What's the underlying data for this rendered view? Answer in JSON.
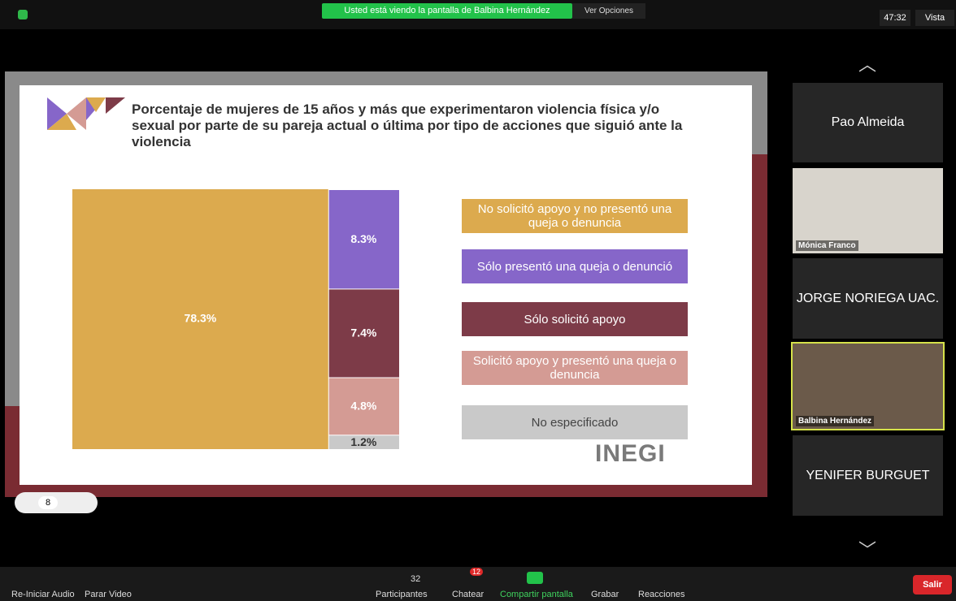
{
  "banner": {
    "text": "Usted está viendo la pantalla de Balbina Hernández",
    "options": "Ver Opciones"
  },
  "top_right": {
    "timer": "47:32",
    "view": "Vista"
  },
  "slide": {
    "page": "8",
    "logo": "INEGI"
  },
  "chart_data": {
    "type": "treemap",
    "title": "Porcentaje de mujeres de 15 años y más que experimentaron violencia física y/o sexual por parte de su pareja actual o última por tipo de acciones que siguió ante la violencia",
    "categories": [
      "No solicitó apoyo y no presentó una queja o denuncia",
      "Sólo presentó una queja o denunció",
      "Sólo solicitó apoyo",
      "Solicitó apoyo y presentó una queja o denuncia",
      "No especificado"
    ],
    "values": [
      78.3,
      8.3,
      7.4,
      4.8,
      1.2
    ],
    "value_labels": [
      "78.3%",
      "8.3%",
      "7.4%",
      "4.8%",
      "1.2%"
    ],
    "colors": [
      "#dcaa4e",
      "#8666c9",
      "#7d3b48",
      "#d49b94",
      "#c9c9c9"
    ]
  },
  "participants": [
    "Pao Almeida",
    "Mónica Franco",
    "JORGE NORIEGA UAC.",
    "Balbina Hernández",
    "YENIFER BURGUET"
  ],
  "toolbar": {
    "audio": "Re-Iniciar Audio",
    "video": "Parar Video",
    "participants": "Participantes",
    "participants_count": "32",
    "chat": "Chatear",
    "chat_count": "12",
    "share": "Compartir pantalla",
    "record": "Grabar",
    "reactions": "Reacciones",
    "leave": "Salir"
  }
}
